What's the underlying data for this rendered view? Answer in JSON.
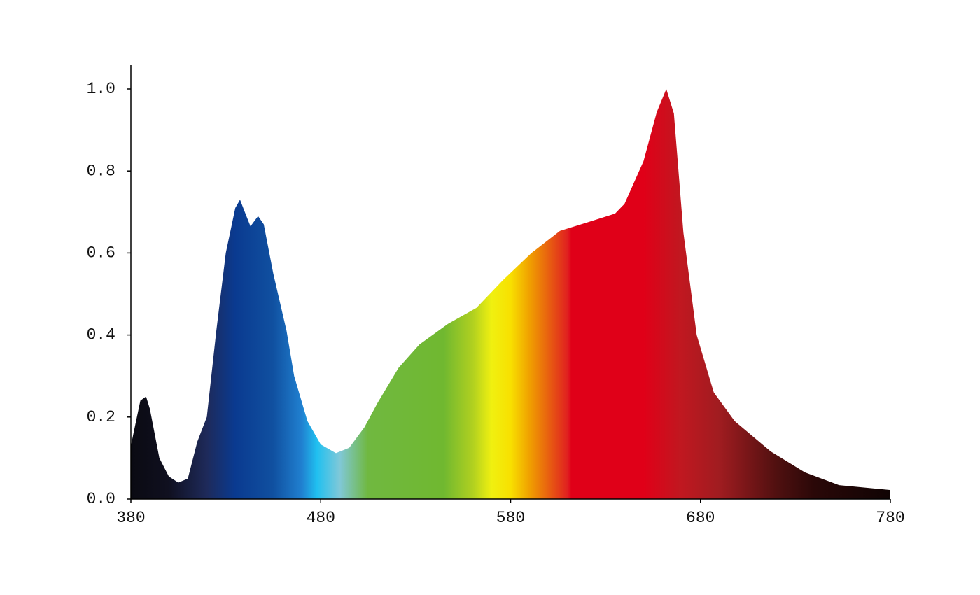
{
  "chart_data": {
    "type": "area",
    "x": [
      380,
      385,
      388,
      390,
      395,
      400,
      405,
      410,
      415,
      420,
      425,
      430,
      435,
      437.5,
      440,
      443,
      447,
      450,
      455,
      462,
      466,
      473,
      480,
      488,
      495,
      503,
      510,
      521,
      532,
      547,
      562,
      576,
      591,
      606,
      620,
      635,
      640,
      650,
      657,
      662,
      666,
      671,
      678,
      687,
      698,
      717,
      735,
      753,
      780
    ],
    "values": [
      0.13,
      0.24,
      0.25,
      0.22,
      0.1,
      0.055,
      0.04,
      0.05,
      0.14,
      0.2,
      0.41,
      0.6,
      0.71,
      0.73,
      0.7,
      0.665,
      0.69,
      0.67,
      0.55,
      0.41,
      0.3,
      0.19,
      0.133,
      0.112,
      0.125,
      0.175,
      0.235,
      0.32,
      0.377,
      0.427,
      0.466,
      0.534,
      0.6,
      0.654,
      0.674,
      0.696,
      0.72,
      0.824,
      0.944,
      1.0,
      0.94,
      0.65,
      0.4,
      0.26,
      0.19,
      0.116,
      0.065,
      0.034,
      0.022
    ],
    "xlim": [
      380,
      780
    ],
    "xticks": [
      380,
      480,
      580,
      680,
      780
    ],
    "ylim": [
      0,
      1.05
    ],
    "yticks": [
      {
        "value": 0,
        "label": "0.0"
      },
      0.2,
      0.4,
      0.6,
      0.8,
      {
        "value": 1,
        "label": "1.0"
      }
    ],
    "grid": false
  }
}
